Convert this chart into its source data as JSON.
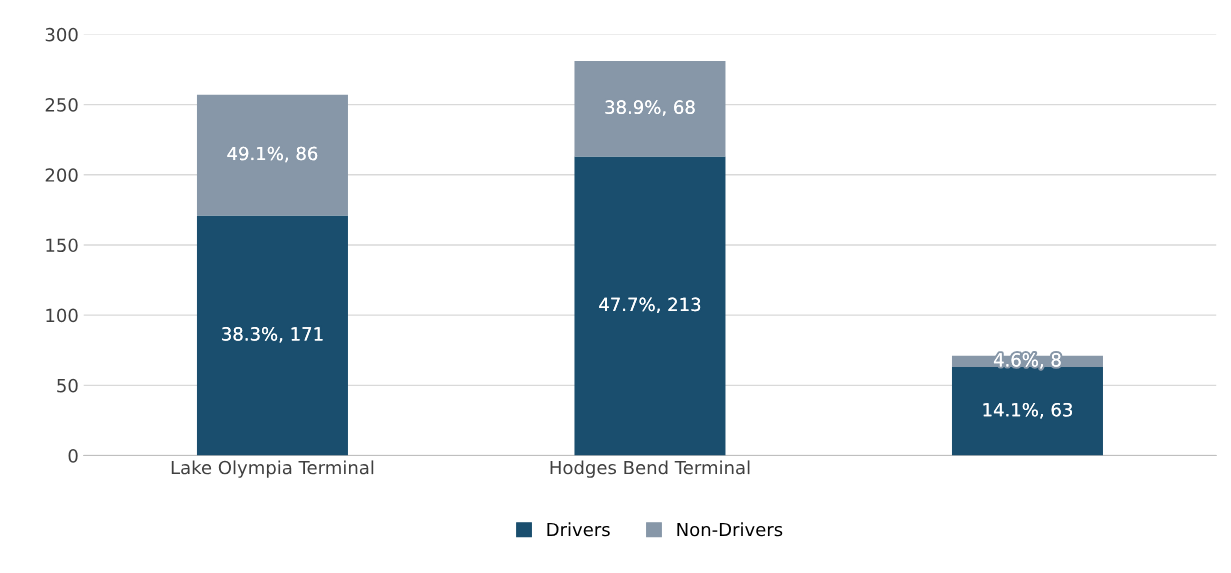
{
  "chart_data": {
    "type": "bar",
    "stacked": true,
    "categories": [
      "Lake Olympia Terminal",
      "Hodges Bend Terminal",
      null
    ],
    "series": [
      {
        "name": "Drivers",
        "color": "#1a4e6e",
        "values": [
          171,
          213,
          63
        ],
        "value_labels": [
          "38.3%, 171",
          "47.7%, 213",
          "14.1%, 63"
        ]
      },
      {
        "name": "Non-Drivers",
        "color": "#8797a8",
        "values": [
          86,
          68,
          8
        ],
        "value_labels": [
          "49.1%, 86",
          "38.9%, 68",
          "4.6%, 8"
        ]
      }
    ],
    "ylim": [
      0,
      300
    ],
    "yticks": [
      0,
      50,
      100,
      150,
      200,
      250,
      300
    ],
    "grid": "y",
    "legend": "bottom"
  }
}
